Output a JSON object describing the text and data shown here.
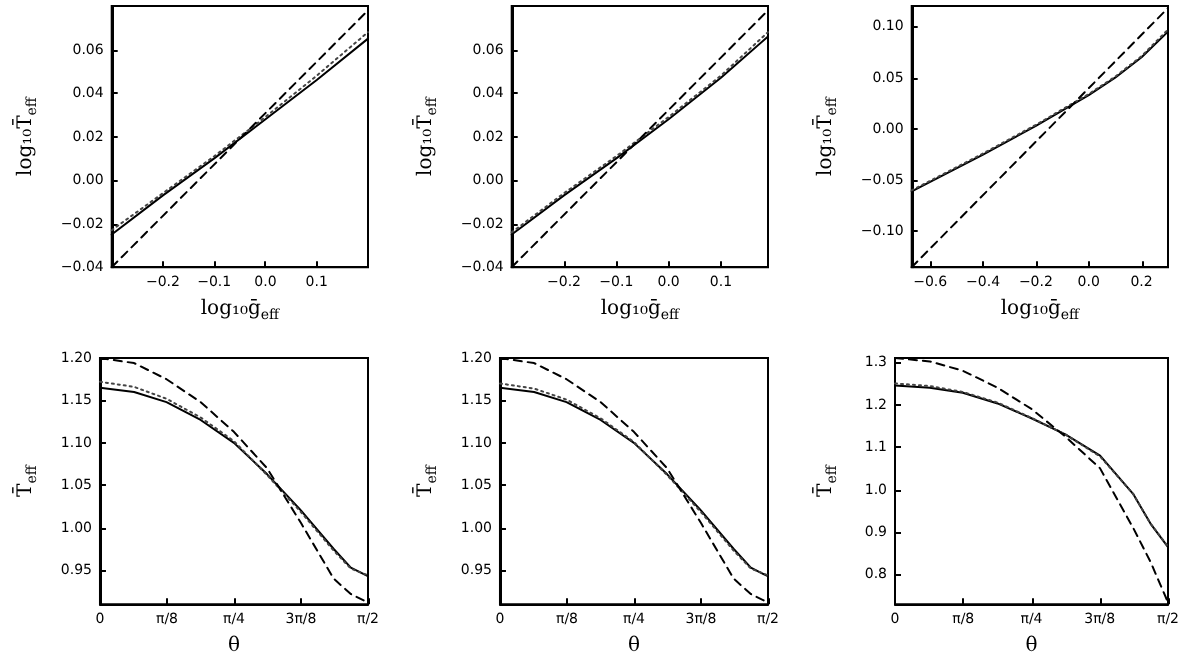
{
  "chart_data": [
    {
      "type": "line",
      "xlabel": "log₁₀ḡ$_{eff}$",
      "ylabel": "log₁₀T̄$_{eff}$",
      "xlim": [
        -0.3,
        0.2
      ],
      "ylim": [
        -0.04,
        0.08
      ],
      "xticks": [
        {
          "value": -0.2,
          "label": "−0.2"
        },
        {
          "value": -0.1,
          "label": "−0.1"
        },
        {
          "value": 0,
          "label": "0.0"
        },
        {
          "value": 0.1,
          "label": "0.1"
        }
      ],
      "yticks": [
        {
          "value": -0.04,
          "label": "−0.04"
        },
        {
          "value": -0.02,
          "label": "−0.02"
        },
        {
          "value": 0,
          "label": "0.00"
        },
        {
          "value": 0.02,
          "label": "0.02"
        },
        {
          "value": 0.04,
          "label": "0.04"
        },
        {
          "value": 0.06,
          "label": "0.06"
        }
      ],
      "grid": false,
      "marker": "none",
      "series": [
        {
          "color": "#000000",
          "line_style": "solid",
          "x": [
            -0.3,
            -0.2,
            -0.1,
            0,
            0.1,
            0.2
          ],
          "values": [
            -0.025,
            -0.007,
            0.01,
            0.028,
            0.046,
            0.065
          ]
        },
        {
          "color": "#444444",
          "line_style": "dotted",
          "x": [
            -0.3,
            -0.2,
            -0.1,
            0,
            0.1,
            0.2
          ],
          "values": [
            -0.023,
            -0.006,
            0.011,
            0.029,
            0.048,
            0.068
          ]
        },
        {
          "color": "#000000",
          "line_style": "dashed",
          "x": [
            -0.3,
            0.2
          ],
          "values": [
            -0.04,
            0.078
          ]
        }
      ]
    },
    {
      "type": "line",
      "xlabel": "log₁₀ḡ$_{eff}$",
      "ylabel": "log₁₀T̄$_{eff}$",
      "xlim": [
        -0.3,
        0.19
      ],
      "ylim": [
        -0.04,
        0.08
      ],
      "xticks": [
        {
          "value": -0.2,
          "label": "−0.2"
        },
        {
          "value": -0.1,
          "label": "−0.1"
        },
        {
          "value": 0,
          "label": "0.0"
        },
        {
          "value": 0.1,
          "label": "0.1"
        }
      ],
      "yticks": [
        {
          "value": -0.04,
          "label": "−0.04"
        },
        {
          "value": -0.02,
          "label": "−0.02"
        },
        {
          "value": 0,
          "label": "0.00"
        },
        {
          "value": 0.02,
          "label": "0.02"
        },
        {
          "value": 0.04,
          "label": "0.04"
        },
        {
          "value": 0.06,
          "label": "0.06"
        }
      ],
      "grid": false,
      "marker": "none",
      "series": [
        {
          "color": "#000000",
          "line_style": "solid",
          "x": [
            -0.3,
            -0.2,
            -0.1,
            0,
            0.1,
            0.19
          ],
          "values": [
            -0.025,
            -0.007,
            0.01,
            0.028,
            0.047,
            0.066
          ]
        },
        {
          "color": "#444444",
          "line_style": "dotted",
          "x": [
            -0.3,
            -0.2,
            -0.1,
            0,
            0.1,
            0.19
          ],
          "values": [
            -0.024,
            -0.006,
            0.011,
            0.029,
            0.048,
            0.068
          ]
        },
        {
          "color": "#000000",
          "line_style": "dashed",
          "x": [
            -0.3,
            0.19
          ],
          "values": [
            -0.04,
            0.078
          ]
        }
      ]
    },
    {
      "type": "line",
      "xlabel": "log₁₀ḡ$_{eff}$",
      "ylabel": "log₁₀T̄$_{eff}$",
      "xlim": [
        -0.67,
        0.3
      ],
      "ylim": [
        -0.135,
        0.12
      ],
      "xticks": [
        {
          "value": -0.6,
          "label": "−0.6"
        },
        {
          "value": -0.4,
          "label": "−0.4"
        },
        {
          "value": -0.2,
          "label": "−0.2"
        },
        {
          "value": 0,
          "label": "0.0"
        },
        {
          "value": 0.2,
          "label": "0.2"
        }
      ],
      "yticks": [
        {
          "value": -0.1,
          "label": "−0.10"
        },
        {
          "value": -0.05,
          "label": "−0.05"
        },
        {
          "value": 0,
          "label": "0.00"
        },
        {
          "value": 0.05,
          "label": "0.05"
        },
        {
          "value": 0.1,
          "label": "0.10"
        }
      ],
      "grid": false,
      "marker": "none",
      "series": [
        {
          "color": "#000000",
          "line_style": "solid",
          "x": [
            -0.67,
            -0.4,
            -0.2,
            0,
            0.1,
            0.2,
            0.3
          ],
          "values": [
            -0.061,
            -0.025,
            0.003,
            0.033,
            0.05,
            0.07,
            0.095
          ]
        },
        {
          "color": "#444444",
          "line_style": "dotted",
          "x": [
            -0.67,
            -0.4,
            -0.2,
            0,
            0.1,
            0.2,
            0.3
          ],
          "values": [
            -0.06,
            -0.024,
            0.004,
            0.034,
            0.051,
            0.071,
            0.097
          ]
        },
        {
          "color": "#000000",
          "line_style": "dashed",
          "x": [
            -0.67,
            0.3
          ],
          "values": [
            -0.135,
            0.118
          ]
        }
      ]
    },
    {
      "type": "line",
      "xlabel": "θ",
      "ylabel": "T̄$_{eff}$",
      "xlim": [
        0,
        1.5708
      ],
      "ylim": [
        0.91,
        1.2
      ],
      "xticks": [
        {
          "value": 0,
          "label": "0"
        },
        {
          "value": 0.3927,
          "label": "π/8"
        },
        {
          "value": 0.7854,
          "label": "π/4"
        },
        {
          "value": 1.1781,
          "label": "3π/8"
        },
        {
          "value": 1.5708,
          "label": "π/2"
        }
      ],
      "yticks": [
        {
          "value": 0.95,
          "label": "0.95"
        },
        {
          "value": 1,
          "label": "1.00"
        },
        {
          "value": 1.05,
          "label": "1.05"
        },
        {
          "value": 1.1,
          "label": "1.10"
        },
        {
          "value": 1.15,
          "label": "1.15"
        },
        {
          "value": 1.2,
          "label": "1.20"
        }
      ],
      "grid": false,
      "marker": "none",
      "series": [
        {
          "color": "#000000",
          "line_style": "solid",
          "x": [
            0,
            0.2,
            0.39,
            0.59,
            0.785,
            0.98,
            1.18,
            1.37,
            1.47,
            1.57
          ],
          "values": [
            1.165,
            1.16,
            1.148,
            1.127,
            1.1,
            1.063,
            1.02,
            0.975,
            0.953,
            0.943
          ]
        },
        {
          "color": "#444444",
          "line_style": "dotted",
          "x": [
            0,
            0.2,
            0.39,
            0.59,
            0.785,
            0.98,
            1.18,
            1.37,
            1.47,
            1.57
          ],
          "values": [
            1.172,
            1.166,
            1.152,
            1.13,
            1.102,
            1.062,
            1.018,
            0.973,
            0.952,
            0.944
          ]
        },
        {
          "color": "#000000",
          "line_style": "dashed",
          "x": [
            0,
            0.2,
            0.39,
            0.59,
            0.785,
            0.98,
            1.18,
            1.37,
            1.47,
            1.57
          ],
          "values": [
            1.2,
            1.194,
            1.175,
            1.148,
            1.113,
            1.07,
            1.005,
            0.94,
            0.922,
            0.912
          ]
        }
      ]
    },
    {
      "type": "line",
      "xlabel": "θ",
      "ylabel": "T̄$_{eff}$",
      "xlim": [
        0,
        1.5708
      ],
      "ylim": [
        0.91,
        1.2
      ],
      "xticks": [
        {
          "value": 0,
          "label": "0"
        },
        {
          "value": 0.3927,
          "label": "π/8"
        },
        {
          "value": 0.7854,
          "label": "π/4"
        },
        {
          "value": 1.1781,
          "label": "3π/8"
        },
        {
          "value": 1.5708,
          "label": "π/2"
        }
      ],
      "yticks": [
        {
          "value": 0.95,
          "label": "0.95"
        },
        {
          "value": 1,
          "label": "1.00"
        },
        {
          "value": 1.05,
          "label": "1.05"
        },
        {
          "value": 1.1,
          "label": "1.10"
        },
        {
          "value": 1.15,
          "label": "1.15"
        },
        {
          "value": 1.2,
          "label": "1.20"
        }
      ],
      "grid": false,
      "marker": "none",
      "series": [
        {
          "color": "#000000",
          "line_style": "solid",
          "x": [
            0,
            0.2,
            0.39,
            0.59,
            0.785,
            0.98,
            1.18,
            1.37,
            1.47,
            1.57
          ],
          "values": [
            1.165,
            1.16,
            1.148,
            1.127,
            1.1,
            1.063,
            1.02,
            0.975,
            0.953,
            0.943
          ]
        },
        {
          "color": "#444444",
          "line_style": "dotted",
          "x": [
            0,
            0.2,
            0.39,
            0.59,
            0.785,
            0.98,
            1.18,
            1.37,
            1.47,
            1.57
          ],
          "values": [
            1.17,
            1.164,
            1.151,
            1.129,
            1.101,
            1.062,
            1.018,
            0.973,
            0.952,
            0.944
          ]
        },
        {
          "color": "#000000",
          "line_style": "dashed",
          "x": [
            0,
            0.2,
            0.39,
            0.59,
            0.785,
            0.98,
            1.18,
            1.37,
            1.47,
            1.57
          ],
          "values": [
            1.2,
            1.194,
            1.175,
            1.148,
            1.113,
            1.07,
            1.005,
            0.94,
            0.922,
            0.912
          ]
        }
      ]
    },
    {
      "type": "line",
      "xlabel": "θ",
      "ylabel": "T̄$_{eff}$",
      "xlim": [
        0,
        1.5708
      ],
      "ylim": [
        0.73,
        1.31
      ],
      "xticks": [
        {
          "value": 0,
          "label": "0"
        },
        {
          "value": 0.3927,
          "label": "π/8"
        },
        {
          "value": 0.7854,
          "label": "π/4"
        },
        {
          "value": 1.1781,
          "label": "3π/8"
        },
        {
          "value": 1.5708,
          "label": "π/2"
        }
      ],
      "yticks": [
        {
          "value": 0.8,
          "label": "0.8"
        },
        {
          "value": 0.9,
          "label": "0.9"
        },
        {
          "value": 1,
          "label": "1.0"
        },
        {
          "value": 1.1,
          "label": "1.1"
        },
        {
          "value": 1.2,
          "label": "1.2"
        },
        {
          "value": 1.3,
          "label": "1.3"
        }
      ],
      "grid": false,
      "marker": "none",
      "series": [
        {
          "color": "#000000",
          "line_style": "solid",
          "x": [
            0,
            0.2,
            0.39,
            0.59,
            0.785,
            0.98,
            1.18,
            1.37,
            1.47,
            1.57
          ],
          "values": [
            1.245,
            1.24,
            1.228,
            1.203,
            1.168,
            1.13,
            1.08,
            0.99,
            0.92,
            0.865
          ]
        },
        {
          "color": "#444444",
          "line_style": "dotted",
          "x": [
            0,
            0.2,
            0.39,
            0.59,
            0.785,
            0.98,
            1.18,
            1.37,
            1.47,
            1.57
          ],
          "values": [
            1.25,
            1.244,
            1.23,
            1.205,
            1.169,
            1.13,
            1.078,
            0.99,
            0.92,
            0.866
          ]
        },
        {
          "color": "#000000",
          "line_style": "dashed",
          "x": [
            0,
            0.2,
            0.39,
            0.59,
            0.785,
            0.98,
            1.18,
            1.37,
            1.47,
            1.57
          ],
          "values": [
            1.31,
            1.302,
            1.28,
            1.24,
            1.19,
            1.125,
            1.05,
            0.91,
            0.83,
            0.735
          ]
        }
      ]
    }
  ]
}
